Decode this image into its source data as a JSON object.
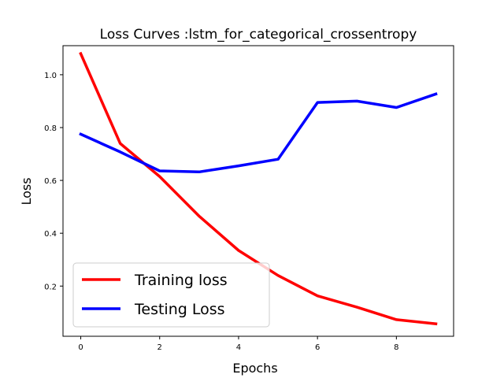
{
  "chart_data": {
    "type": "line",
    "title": "Loss Curves :lstm_for_categorical_crossentropy",
    "xlabel": "Epochs",
    "ylabel": "Loss",
    "xlim": [
      -0.45,
      9.45
    ],
    "ylim": [
      0.01,
      1.11
    ],
    "xticks": [
      0,
      2,
      4,
      6,
      8
    ],
    "yticks": [
      0.2,
      0.4,
      0.6,
      0.8,
      1.0
    ],
    "grid": false,
    "legend_position": "lower-left",
    "x": [
      0,
      1,
      2,
      3,
      4,
      5,
      6,
      7,
      8,
      9
    ],
    "series": [
      {
        "name": "Training loss",
        "color": "#ff0000",
        "values": [
          1.08,
          0.74,
          0.615,
          0.465,
          0.335,
          0.24,
          0.163,
          0.12,
          0.073,
          0.057
        ]
      },
      {
        "name": "Testing Loss",
        "color": "#0000ff",
        "values": [
          0.775,
          0.708,
          0.636,
          0.632,
          0.655,
          0.68,
          0.895,
          0.9,
          0.876,
          0.927
        ]
      }
    ]
  }
}
